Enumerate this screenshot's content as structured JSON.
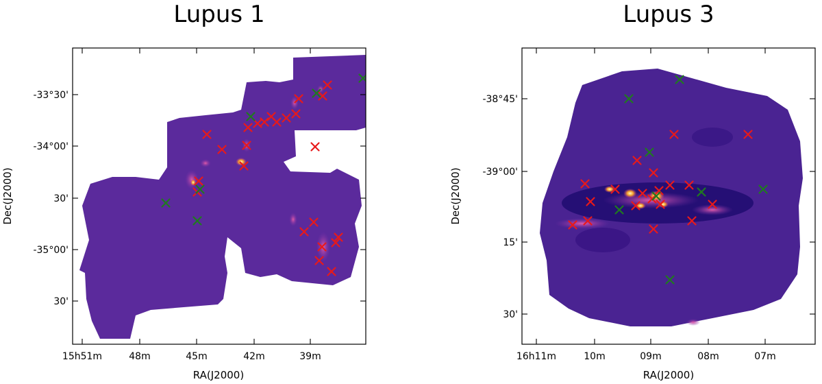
{
  "colors": {
    "map_fill": "#5b2a9c",
    "map_fill_dark": "#2b0a6b",
    "glow_yellow": "#fff19a",
    "glow_orange": "#f5a12a",
    "glow_magenta": "#c2348a",
    "marker_red": "#e8191a",
    "marker_green": "#1f7a1f",
    "axis": "#000000",
    "background": "#ffffff"
  },
  "panels": [
    {
      "title": "Lupus 1",
      "xlabel": "RA(J2000)",
      "ylabel": "Dec(J2000)",
      "x_tick_labels": [
        "15h51m",
        "48m",
        "45m",
        "42m",
        "39m"
      ],
      "y_tick_labels": [
        "-33°30'",
        "-34°00'",
        "30'",
        "-35°00'",
        "30'"
      ],
      "markers_red_count": 24,
      "markers_green_count": 6
    },
    {
      "title": "Lupus 3",
      "xlabel": "RA(J2000)",
      "ylabel": "Dec(J2000)",
      "x_tick_labels": [
        "16h11m",
        "10m",
        "09m",
        "08m",
        "07m"
      ],
      "y_tick_labels": [
        "-38°45'",
        "-39°00'",
        "15'",
        "30'"
      ],
      "markers_red_count": 19,
      "markers_green_count": 8
    }
  ]
}
